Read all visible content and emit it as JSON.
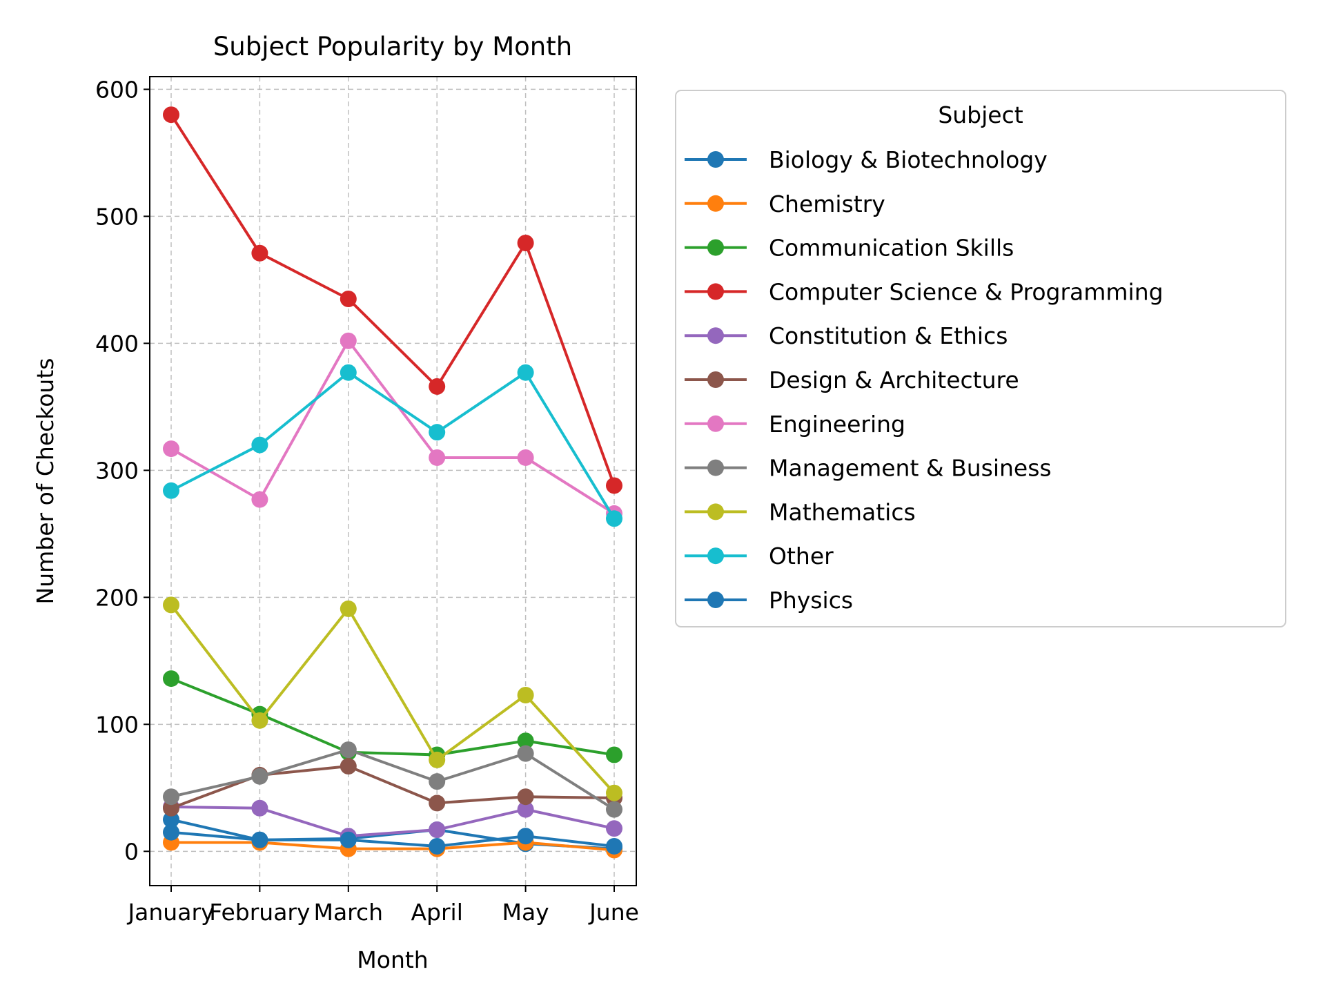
{
  "chart_data": {
    "type": "line",
    "title": "Subject Popularity by Month",
    "xlabel": "Month",
    "ylabel": "Number of Checkouts",
    "categories": [
      "January",
      "February",
      "March",
      "April",
      "May",
      "June"
    ],
    "ylim": [
      -27,
      610
    ],
    "yticks": [
      0,
      100,
      200,
      300,
      400,
      500,
      600
    ],
    "grid": true,
    "grid_style": "dashed",
    "legend_title": "Subject",
    "legend_position": "outside-right-top",
    "series": [
      {
        "name": "Biology & Biotechnology",
        "color": "#1f77b4",
        "values": [
          25,
          9,
          10,
          17,
          6,
          2
        ]
      },
      {
        "name": "Chemistry",
        "color": "#ff7f0e",
        "values": [
          7,
          7,
          2,
          2,
          7,
          1
        ]
      },
      {
        "name": "Communication Skills",
        "color": "#2ca02c",
        "values": [
          136,
          108,
          78,
          76,
          87,
          76
        ]
      },
      {
        "name": "Computer Science & Programming",
        "color": "#d62728",
        "values": [
          580,
          471,
          435,
          366,
          479,
          288
        ]
      },
      {
        "name": "Constitution & Ethics",
        "color": "#9467bd",
        "values": [
          35,
          34,
          12,
          17,
          33,
          18
        ]
      },
      {
        "name": "Design & Architecture",
        "color": "#8c564b",
        "values": [
          34,
          60,
          67,
          38,
          43,
          42
        ]
      },
      {
        "name": "Engineering",
        "color": "#e377c2",
        "values": [
          317,
          277,
          402,
          310,
          310,
          266
        ]
      },
      {
        "name": "Management & Business",
        "color": "#7f7f7f",
        "values": [
          43,
          59,
          80,
          55,
          77,
          33
        ]
      },
      {
        "name": "Mathematics",
        "color": "#bcbd22",
        "values": [
          194,
          103,
          191,
          72,
          123,
          46
        ]
      },
      {
        "name": "Other",
        "color": "#17becf",
        "values": [
          284,
          320,
          377,
          330,
          377,
          262
        ]
      },
      {
        "name": "Physics",
        "color": "#1f77b4",
        "values": [
          15,
          9,
          9,
          4,
          12,
          4
        ]
      }
    ]
  }
}
